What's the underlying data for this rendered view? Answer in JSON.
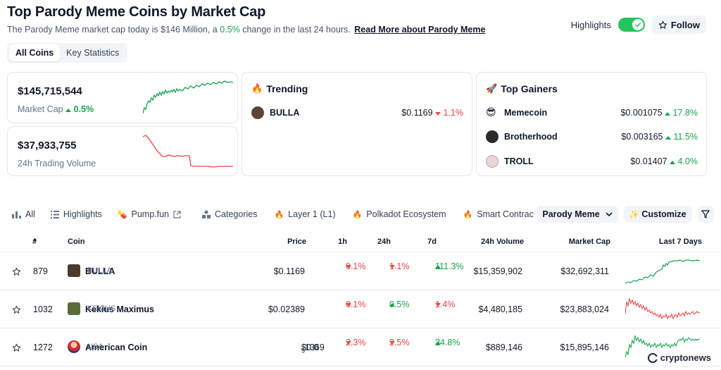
{
  "header": {
    "title": "Top Parody Meme Coins by Market Cap",
    "subtitle_pre": "The Parody Meme market cap today is $146 Million, a ",
    "subtitle_change": "0.5%",
    "subtitle_post": " change in the last 24 hours.",
    "read_more": "Read More about Parody Meme"
  },
  "controls": {
    "highlights_label": "Highlights",
    "follow_label": "Follow"
  },
  "tabs": [
    {
      "label": "All Coins"
    },
    {
      "label": "Key Statistics"
    }
  ],
  "stats": {
    "market_cap": {
      "value": "$145,715,544",
      "label": "Market Cap",
      "change": "0.5%"
    },
    "volume": {
      "value": "$37,933,755",
      "label": "24h Trading Volume"
    }
  },
  "trending": {
    "title": "Trending",
    "items": [
      {
        "name": "BULLA",
        "price": "$0.1169",
        "change": "1.1%"
      }
    ]
  },
  "gainers": {
    "title": "Top Gainers",
    "items": [
      {
        "name": "Memecoin",
        "price": "$0.001075",
        "change": "17.8%"
      },
      {
        "name": "Brotherhood",
        "price": "$0.003165",
        "change": "11.5%"
      },
      {
        "name": "TROLL",
        "price": "$0.01407",
        "change": "4.0%"
      }
    ]
  },
  "categories": {
    "items": [
      "All",
      "Highlights",
      "Pump.fun",
      "Categories",
      "Layer 1 (L1)",
      "Polkadot Ecosystem",
      "Smart Contract Platf"
    ],
    "selected": "Parody Meme",
    "customize": "Customize"
  },
  "table": {
    "headers": {
      "rank": "#",
      "coin": "Coin",
      "price": "Price",
      "h1": "1h",
      "h24": "24h",
      "d7": "7d",
      "volume": "24h Volume",
      "mcap": "Market Cap",
      "last7": "Last 7 Days"
    },
    "rows": [
      {
        "rank": "879",
        "name": "BULLA",
        "symbol": "BULLA",
        "price": "$0.1169",
        "h1": "0.1%",
        "h24": "1.1%",
        "d7": "111.3%",
        "volume": "$15,359,902",
        "mcap": "$32,692,311"
      },
      {
        "rank": "1032",
        "name": "Kekius Maximus",
        "symbol": "KEKIUS",
        "price": "$0.02389",
        "h1": "0.1%",
        "h24": "0.5%",
        "d7": "1.4%",
        "volume": "$4,480,185",
        "mcap": "$23,883,024"
      },
      {
        "rank": "1272",
        "name": "American Coin",
        "symbol": "USA",
        "price_pre": "$0.0",
        "price_sub": "5",
        "price_post": "1369",
        "h1": "2.3%",
        "h24": "2.5%",
        "d7": "24.8%",
        "volume": "$889,146",
        "mcap": "$15,895,146"
      }
    ]
  },
  "watermark": "cryptonews",
  "colors": {
    "up": "#16a34a",
    "down": "#ef4444",
    "toggle": "#22c55e"
  }
}
